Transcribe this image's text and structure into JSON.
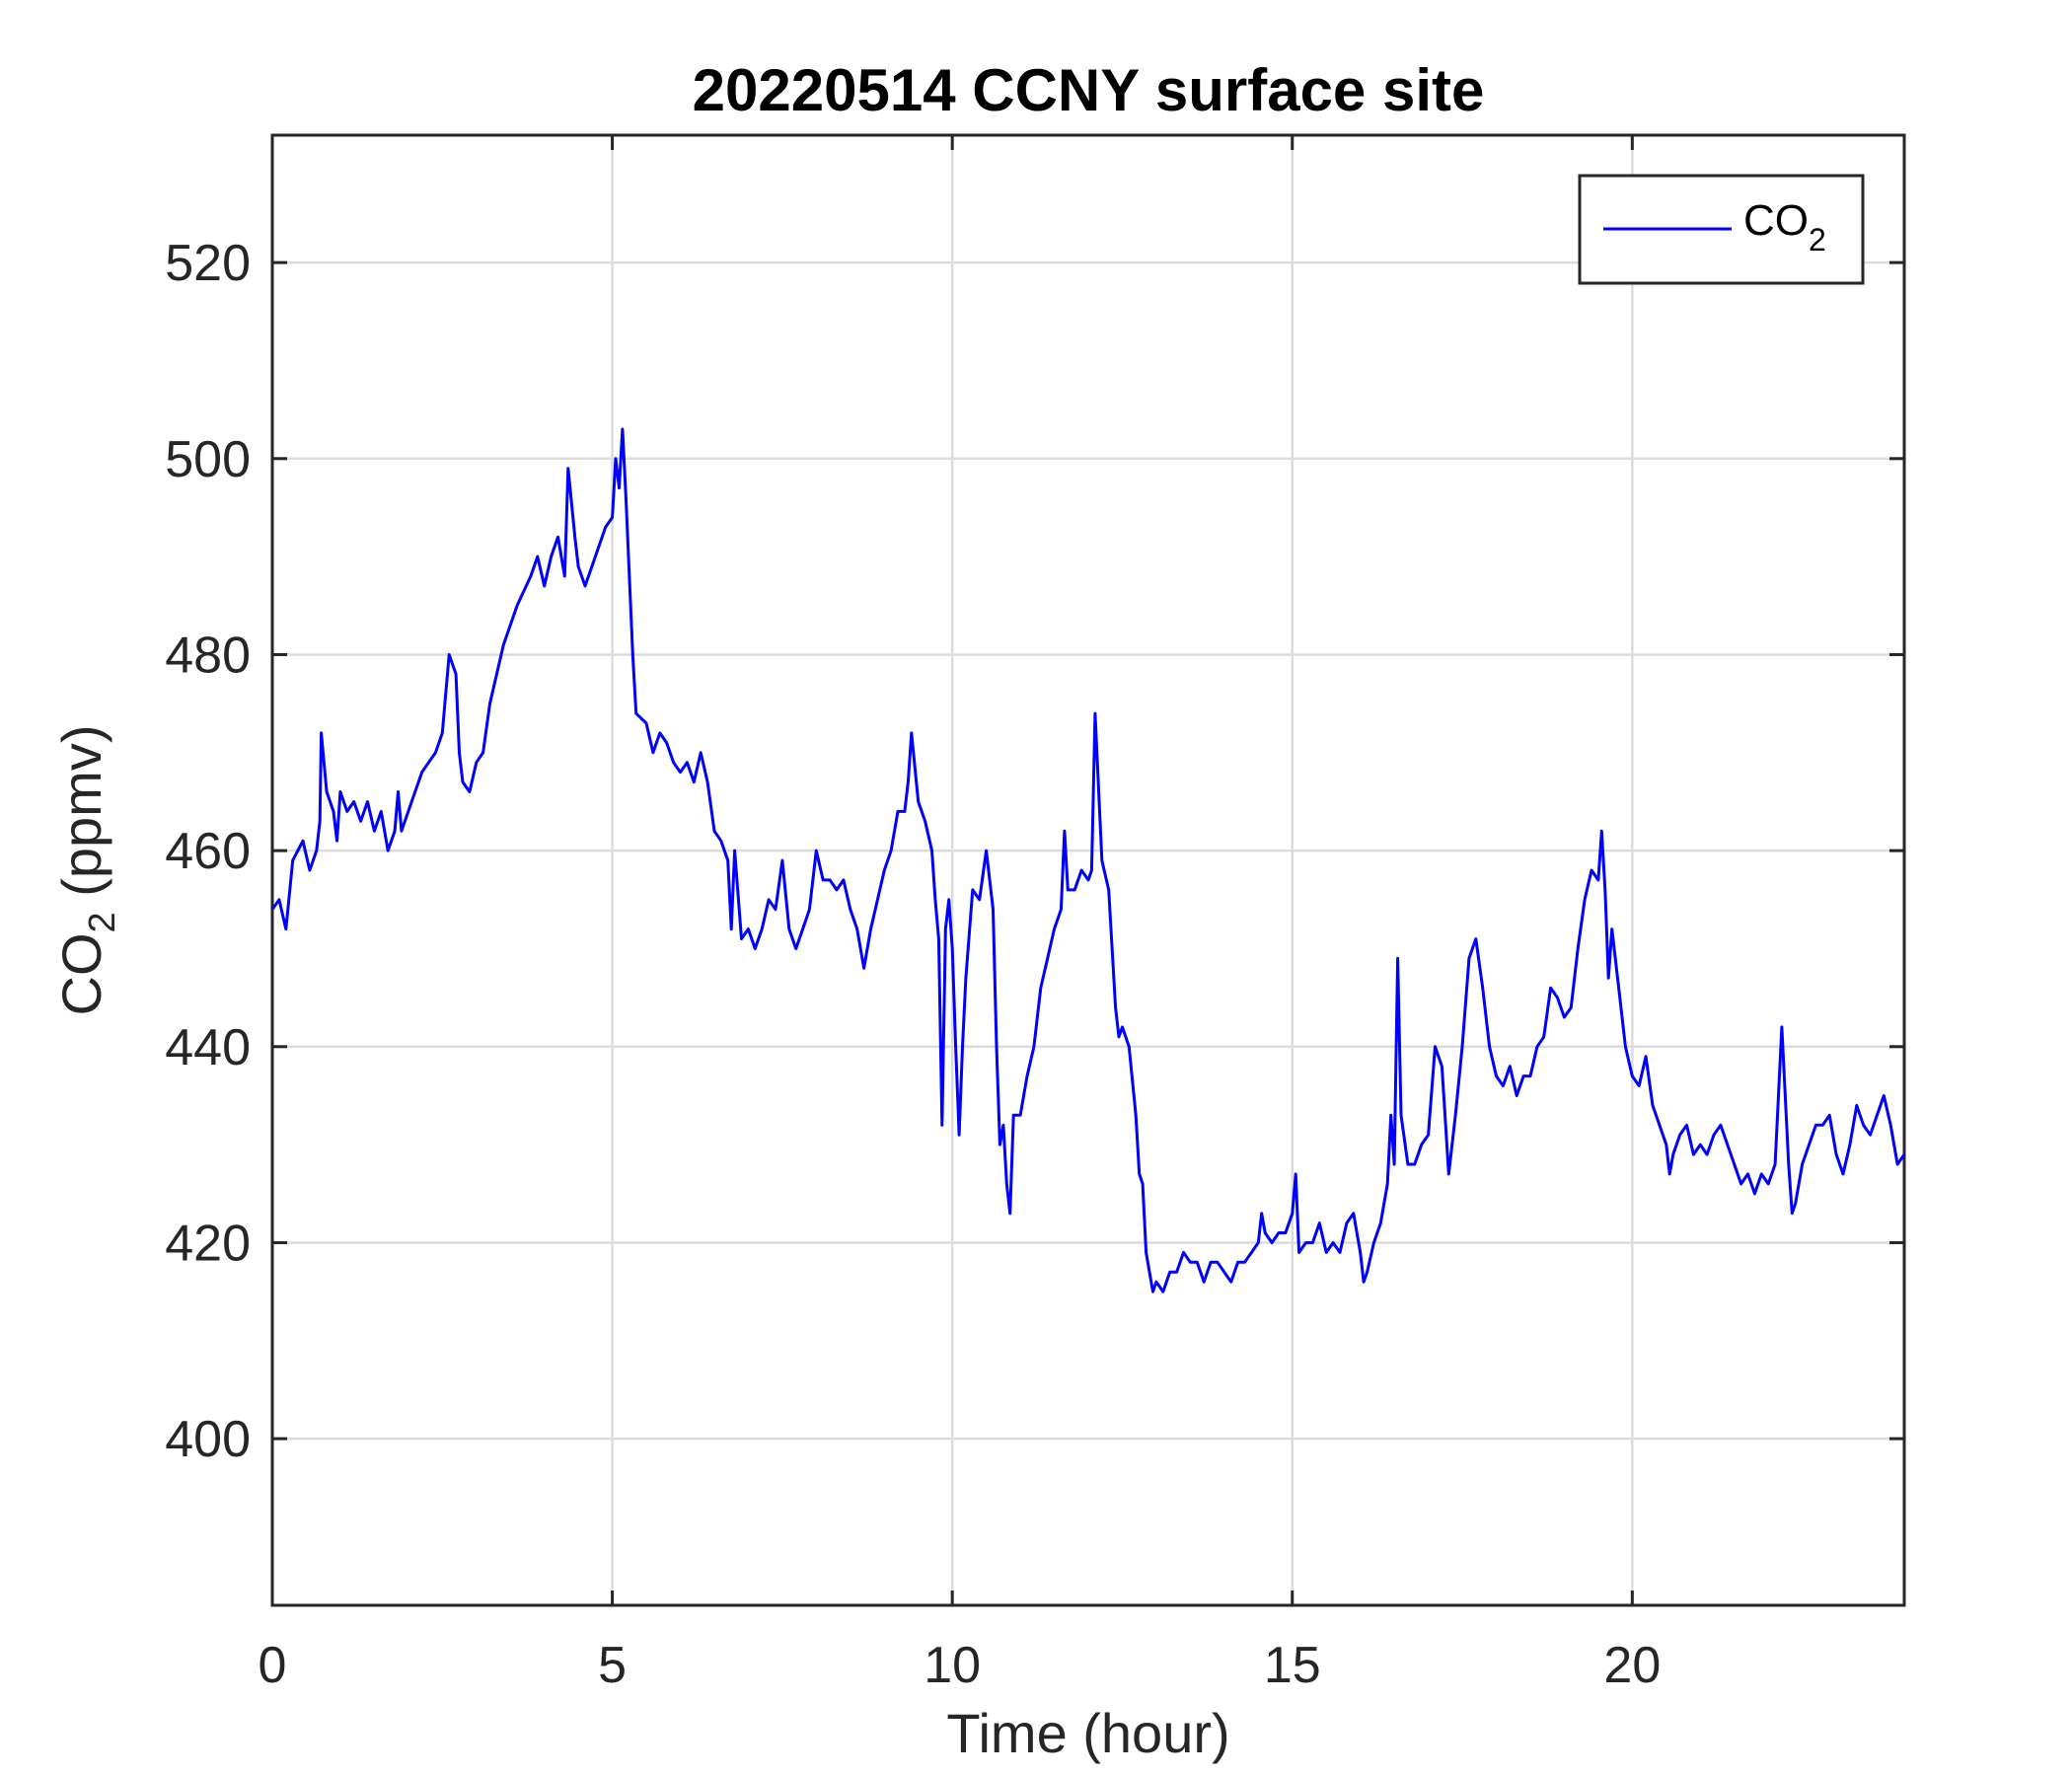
{
  "chart_data": {
    "type": "line",
    "title": "20220514 CCNY surface site",
    "xlabel": "Time (hour)",
    "ylabel": {
      "main": "CO",
      "sub": "2",
      "rest": " (ppmv)"
    },
    "xlim": [
      0,
      24
    ],
    "ylim": [
      383,
      533
    ],
    "xticks": [
      0,
      5,
      10,
      15,
      20
    ],
    "yticks": [
      400,
      420,
      440,
      460,
      480,
      500,
      520
    ],
    "grid": true,
    "legend_position": "top-right",
    "series": [
      {
        "name": {
          "main": "CO",
          "sub": "2"
        },
        "color": "#0000ff",
        "points": [
          [
            0.0,
            454
          ],
          [
            0.1,
            455
          ],
          [
            0.2,
            452
          ],
          [
            0.3,
            459
          ],
          [
            0.45,
            461
          ],
          [
            0.55,
            458
          ],
          [
            0.65,
            460
          ],
          [
            0.7,
            463
          ],
          [
            0.72,
            472
          ],
          [
            0.8,
            466
          ],
          [
            0.9,
            464
          ],
          [
            0.95,
            461
          ],
          [
            1.0,
            466
          ],
          [
            1.1,
            464
          ],
          [
            1.2,
            465
          ],
          [
            1.3,
            463
          ],
          [
            1.4,
            465
          ],
          [
            1.5,
            462
          ],
          [
            1.6,
            464
          ],
          [
            1.7,
            460
          ],
          [
            1.8,
            462
          ],
          [
            1.85,
            466
          ],
          [
            1.9,
            462
          ],
          [
            2.0,
            464
          ],
          [
            2.1,
            466
          ],
          [
            2.2,
            468
          ],
          [
            2.3,
            469
          ],
          [
            2.4,
            470
          ],
          [
            2.5,
            472
          ],
          [
            2.6,
            480
          ],
          [
            2.7,
            478
          ],
          [
            2.75,
            470
          ],
          [
            2.8,
            467
          ],
          [
            2.9,
            466
          ],
          [
            3.0,
            469
          ],
          [
            3.1,
            470
          ],
          [
            3.2,
            475
          ],
          [
            3.4,
            481
          ],
          [
            3.6,
            485
          ],
          [
            3.8,
            488
          ],
          [
            3.9,
            490
          ],
          [
            4.0,
            487
          ],
          [
            4.1,
            490
          ],
          [
            4.2,
            492
          ],
          [
            4.3,
            488
          ],
          [
            4.35,
            499
          ],
          [
            4.45,
            492
          ],
          [
            4.5,
            489
          ],
          [
            4.6,
            487
          ],
          [
            4.7,
            489
          ],
          [
            4.8,
            491
          ],
          [
            4.9,
            493
          ],
          [
            5.0,
            494
          ],
          [
            5.05,
            500
          ],
          [
            5.1,
            497
          ],
          [
            5.15,
            503
          ],
          [
            5.2,
            496
          ],
          [
            5.3,
            480
          ],
          [
            5.35,
            474
          ],
          [
            5.5,
            473
          ],
          [
            5.6,
            470
          ],
          [
            5.7,
            472
          ],
          [
            5.8,
            471
          ],
          [
            5.9,
            469
          ],
          [
            6.0,
            468
          ],
          [
            6.1,
            469
          ],
          [
            6.2,
            467
          ],
          [
            6.3,
            470
          ],
          [
            6.4,
            467
          ],
          [
            6.5,
            462
          ],
          [
            6.6,
            461
          ],
          [
            6.7,
            459
          ],
          [
            6.75,
            452
          ],
          [
            6.8,
            460
          ],
          [
            6.9,
            451
          ],
          [
            7.0,
            452
          ],
          [
            7.1,
            450
          ],
          [
            7.2,
            452
          ],
          [
            7.3,
            455
          ],
          [
            7.4,
            454
          ],
          [
            7.5,
            459
          ],
          [
            7.6,
            452
          ],
          [
            7.7,
            450
          ],
          [
            7.8,
            452
          ],
          [
            7.9,
            454
          ],
          [
            8.0,
            460
          ],
          [
            8.1,
            457
          ],
          [
            8.2,
            457
          ],
          [
            8.3,
            456
          ],
          [
            8.4,
            457
          ],
          [
            8.5,
            454
          ],
          [
            8.6,
            452
          ],
          [
            8.7,
            448
          ],
          [
            8.8,
            452
          ],
          [
            8.9,
            455
          ],
          [
            9.0,
            458
          ],
          [
            9.1,
            460
          ],
          [
            9.2,
            464
          ],
          [
            9.3,
            464
          ],
          [
            9.35,
            467
          ],
          [
            9.4,
            472
          ],
          [
            9.5,
            465
          ],
          [
            9.6,
            463
          ],
          [
            9.7,
            460
          ],
          [
            9.75,
            455
          ],
          [
            9.8,
            451
          ],
          [
            9.85,
            432
          ],
          [
            9.9,
            452
          ],
          [
            9.95,
            455
          ],
          [
            10.0,
            450
          ],
          [
            10.05,
            440
          ],
          [
            10.1,
            431
          ],
          [
            10.15,
            440
          ],
          [
            10.2,
            447
          ],
          [
            10.3,
            456
          ],
          [
            10.4,
            455
          ],
          [
            10.5,
            460
          ],
          [
            10.6,
            454
          ],
          [
            10.65,
            440
          ],
          [
            10.7,
            430
          ],
          [
            10.75,
            432
          ],
          [
            10.8,
            426
          ],
          [
            10.85,
            423
          ],
          [
            10.9,
            433
          ],
          [
            11.0,
            433
          ],
          [
            11.1,
            437
          ],
          [
            11.2,
            440
          ],
          [
            11.3,
            446
          ],
          [
            11.4,
            449
          ],
          [
            11.5,
            452
          ],
          [
            11.6,
            454
          ],
          [
            11.65,
            462
          ],
          [
            11.7,
            456
          ],
          [
            11.8,
            456
          ],
          [
            11.9,
            458
          ],
          [
            12.0,
            457
          ],
          [
            12.05,
            458
          ],
          [
            12.1,
            474
          ],
          [
            12.2,
            459
          ],
          [
            12.3,
            456
          ],
          [
            12.4,
            444
          ],
          [
            12.45,
            441
          ],
          [
            12.5,
            442
          ],
          [
            12.6,
            440
          ],
          [
            12.7,
            433
          ],
          [
            12.75,
            427
          ],
          [
            12.8,
            426
          ],
          [
            12.85,
            419
          ],
          [
            12.9,
            417
          ],
          [
            12.95,
            415
          ],
          [
            13.0,
            416
          ],
          [
            13.1,
            415
          ],
          [
            13.2,
            417
          ],
          [
            13.3,
            417
          ],
          [
            13.4,
            419
          ],
          [
            13.5,
            418
          ],
          [
            13.6,
            418
          ],
          [
            13.7,
            416
          ],
          [
            13.8,
            418
          ],
          [
            13.9,
            418
          ],
          [
            14.0,
            417
          ],
          [
            14.1,
            416
          ],
          [
            14.2,
            418
          ],
          [
            14.3,
            418
          ],
          [
            14.4,
            419
          ],
          [
            14.5,
            420
          ],
          [
            14.55,
            423
          ],
          [
            14.6,
            421
          ],
          [
            14.7,
            420
          ],
          [
            14.8,
            421
          ],
          [
            14.9,
            421
          ],
          [
            15.0,
            423
          ],
          [
            15.05,
            427
          ],
          [
            15.1,
            419
          ],
          [
            15.2,
            420
          ],
          [
            15.3,
            420
          ],
          [
            15.4,
            422
          ],
          [
            15.5,
            419
          ],
          [
            15.6,
            420
          ],
          [
            15.7,
            419
          ],
          [
            15.8,
            422
          ],
          [
            15.9,
            423
          ],
          [
            16.0,
            419
          ],
          [
            16.05,
            416
          ],
          [
            16.1,
            417
          ],
          [
            16.2,
            420
          ],
          [
            16.3,
            422
          ],
          [
            16.4,
            426
          ],
          [
            16.45,
            433
          ],
          [
            16.5,
            428
          ],
          [
            16.55,
            449
          ],
          [
            16.6,
            433
          ],
          [
            16.7,
            428
          ],
          [
            16.8,
            428
          ],
          [
            16.9,
            430
          ],
          [
            17.0,
            431
          ],
          [
            17.1,
            440
          ],
          [
            17.2,
            438
          ],
          [
            17.3,
            427
          ],
          [
            17.4,
            433
          ],
          [
            17.5,
            440
          ],
          [
            17.6,
            449
          ],
          [
            17.7,
            451
          ],
          [
            17.8,
            446
          ],
          [
            17.9,
            440
          ],
          [
            18.0,
            437
          ],
          [
            18.1,
            436
          ],
          [
            18.2,
            438
          ],
          [
            18.3,
            435
          ],
          [
            18.4,
            437
          ],
          [
            18.5,
            437
          ],
          [
            18.6,
            440
          ],
          [
            18.7,
            441
          ],
          [
            18.8,
            446
          ],
          [
            18.9,
            445
          ],
          [
            19.0,
            443
          ],
          [
            19.1,
            444
          ],
          [
            19.2,
            450
          ],
          [
            19.3,
            455
          ],
          [
            19.4,
            458
          ],
          [
            19.5,
            457
          ],
          [
            19.55,
            462
          ],
          [
            19.6,
            456
          ],
          [
            19.65,
            447
          ],
          [
            19.7,
            452
          ],
          [
            19.8,
            446
          ],
          [
            19.9,
            440
          ],
          [
            20.0,
            437
          ],
          [
            20.1,
            436
          ],
          [
            20.2,
            439
          ],
          [
            20.3,
            434
          ],
          [
            20.4,
            432
          ],
          [
            20.5,
            430
          ],
          [
            20.55,
            427
          ],
          [
            20.6,
            429
          ],
          [
            20.7,
            431
          ],
          [
            20.8,
            432
          ],
          [
            20.9,
            429
          ],
          [
            21.0,
            430
          ],
          [
            21.1,
            429
          ],
          [
            21.2,
            431
          ],
          [
            21.3,
            432
          ],
          [
            21.4,
            430
          ],
          [
            21.5,
            428
          ],
          [
            21.6,
            426
          ],
          [
            21.7,
            427
          ],
          [
            21.8,
            425
          ],
          [
            21.9,
            427
          ],
          [
            22.0,
            426
          ],
          [
            22.1,
            428
          ],
          [
            22.2,
            442
          ],
          [
            22.3,
            428
          ],
          [
            22.35,
            423
          ],
          [
            22.4,
            424
          ],
          [
            22.5,
            428
          ],
          [
            22.6,
            430
          ],
          [
            22.7,
            432
          ],
          [
            22.8,
            432
          ],
          [
            22.9,
            433
          ],
          [
            23.0,
            429
          ],
          [
            23.1,
            427
          ],
          [
            23.2,
            430
          ],
          [
            23.3,
            434
          ],
          [
            23.4,
            432
          ],
          [
            23.5,
            431
          ],
          [
            23.6,
            433
          ],
          [
            23.7,
            435
          ],
          [
            23.8,
            432
          ],
          [
            23.9,
            428
          ],
          [
            24.0,
            429
          ]
        ]
      }
    ]
  }
}
